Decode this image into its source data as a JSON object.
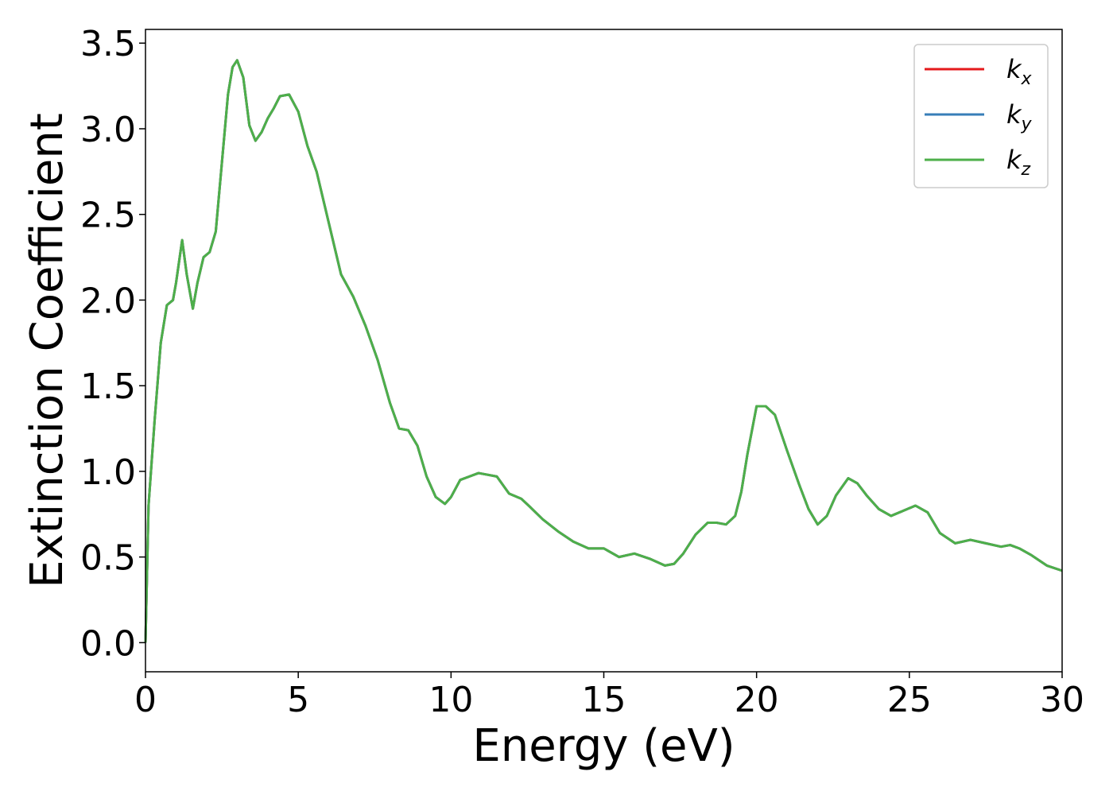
{
  "chart_data": {
    "type": "line",
    "title": "",
    "xlabel": "Energy (eV)",
    "ylabel": "Extinction Coefficient",
    "xlim": [
      0,
      30
    ],
    "ylim": [
      -0.17,
      3.58
    ],
    "xticks": [
      0,
      5,
      10,
      15,
      20,
      25,
      30
    ],
    "xtick_labels": [
      "0",
      "5",
      "10",
      "15",
      "20",
      "25",
      "30"
    ],
    "yticks": [
      0.0,
      0.5,
      1.0,
      1.5,
      2.0,
      2.5,
      3.0,
      3.5
    ],
    "ytick_labels": [
      "0.0",
      "0.5",
      "1.0",
      "1.5",
      "2.0",
      "2.5",
      "3.0",
      "3.5"
    ],
    "grid": false,
    "legend_position": "top-right",
    "x": [
      0.0,
      0.1,
      0.3,
      0.5,
      0.7,
      0.9,
      1.0,
      1.2,
      1.35,
      1.55,
      1.7,
      1.9,
      2.1,
      2.3,
      2.5,
      2.7,
      2.85,
      3.0,
      3.2,
      3.4,
      3.6,
      3.8,
      4.0,
      4.2,
      4.4,
      4.7,
      5.0,
      5.3,
      5.6,
      6.0,
      6.4,
      6.8,
      7.2,
      7.6,
      8.0,
      8.3,
      8.6,
      8.9,
      9.2,
      9.5,
      9.8,
      10.0,
      10.3,
      10.6,
      10.9,
      11.2,
      11.5,
      11.9,
      12.3,
      12.6,
      13.0,
      13.5,
      14.0,
      14.5,
      15.0,
      15.5,
      16.0,
      16.5,
      17.0,
      17.3,
      17.6,
      18.0,
      18.4,
      18.7,
      19.0,
      19.3,
      19.5,
      19.7,
      20.0,
      20.3,
      20.6,
      21.0,
      21.4,
      21.7,
      22.0,
      22.3,
      22.6,
      23.0,
      23.3,
      23.6,
      24.0,
      24.4,
      24.8,
      25.2,
      25.6,
      26.0,
      26.5,
      27.0,
      27.5,
      28.0,
      28.3,
      28.6,
      29.0,
      29.5,
      30.0
    ],
    "series": [
      {
        "name": "k_x",
        "color": "#e41a1c",
        "values": [
          0.0,
          0.8,
          1.3,
          1.75,
          1.97,
          2.0,
          2.1,
          2.35,
          2.15,
          1.95,
          2.1,
          2.25,
          2.28,
          2.4,
          2.8,
          3.2,
          3.36,
          3.4,
          3.3,
          3.02,
          2.93,
          2.98,
          3.06,
          3.12,
          3.19,
          3.2,
          3.1,
          2.9,
          2.75,
          2.45,
          2.15,
          2.02,
          1.85,
          1.65,
          1.4,
          1.25,
          1.24,
          1.15,
          0.97,
          0.85,
          0.81,
          0.85,
          0.95,
          0.97,
          0.99,
          0.98,
          0.97,
          0.87,
          0.84,
          0.79,
          0.72,
          0.65,
          0.59,
          0.55,
          0.55,
          0.5,
          0.52,
          0.49,
          0.45,
          0.46,
          0.52,
          0.63,
          0.7,
          0.7,
          0.69,
          0.74,
          0.88,
          1.1,
          1.38,
          1.38,
          1.33,
          1.12,
          0.92,
          0.78,
          0.69,
          0.74,
          0.86,
          0.96,
          0.93,
          0.86,
          0.78,
          0.74,
          0.77,
          0.8,
          0.76,
          0.64,
          0.58,
          0.6,
          0.58,
          0.56,
          0.57,
          0.55,
          0.51,
          0.45,
          0.42
        ]
      },
      {
        "name": "k_y",
        "color": "#377eb8",
        "values": [
          0.0,
          0.8,
          1.3,
          1.75,
          1.97,
          2.0,
          2.1,
          2.35,
          2.15,
          1.95,
          2.1,
          2.25,
          2.28,
          2.4,
          2.8,
          3.2,
          3.36,
          3.4,
          3.3,
          3.02,
          2.93,
          2.98,
          3.06,
          3.12,
          3.19,
          3.2,
          3.1,
          2.9,
          2.75,
          2.45,
          2.15,
          2.02,
          1.85,
          1.65,
          1.4,
          1.25,
          1.24,
          1.15,
          0.97,
          0.85,
          0.81,
          0.85,
          0.95,
          0.97,
          0.99,
          0.98,
          0.97,
          0.87,
          0.84,
          0.79,
          0.72,
          0.65,
          0.59,
          0.55,
          0.55,
          0.5,
          0.52,
          0.49,
          0.45,
          0.46,
          0.52,
          0.63,
          0.7,
          0.7,
          0.69,
          0.74,
          0.88,
          1.1,
          1.38,
          1.38,
          1.33,
          1.12,
          0.92,
          0.78,
          0.69,
          0.74,
          0.86,
          0.96,
          0.93,
          0.86,
          0.78,
          0.74,
          0.77,
          0.8,
          0.76,
          0.64,
          0.58,
          0.6,
          0.58,
          0.56,
          0.57,
          0.55,
          0.51,
          0.45,
          0.42
        ]
      },
      {
        "name": "k_z",
        "color": "#4daf4a",
        "values": [
          0.0,
          0.8,
          1.3,
          1.75,
          1.97,
          2.0,
          2.1,
          2.35,
          2.15,
          1.95,
          2.1,
          2.25,
          2.28,
          2.4,
          2.8,
          3.2,
          3.36,
          3.4,
          3.3,
          3.02,
          2.93,
          2.98,
          3.06,
          3.12,
          3.19,
          3.2,
          3.1,
          2.9,
          2.75,
          2.45,
          2.15,
          2.02,
          1.85,
          1.65,
          1.4,
          1.25,
          1.24,
          1.15,
          0.97,
          0.85,
          0.81,
          0.85,
          0.95,
          0.97,
          0.99,
          0.98,
          0.97,
          0.87,
          0.84,
          0.79,
          0.72,
          0.65,
          0.59,
          0.55,
          0.55,
          0.5,
          0.52,
          0.49,
          0.45,
          0.46,
          0.52,
          0.63,
          0.7,
          0.7,
          0.69,
          0.74,
          0.88,
          1.1,
          1.38,
          1.38,
          1.33,
          1.12,
          0.92,
          0.78,
          0.69,
          0.74,
          0.86,
          0.96,
          0.93,
          0.86,
          0.78,
          0.74,
          0.77,
          0.8,
          0.76,
          0.64,
          0.58,
          0.6,
          0.58,
          0.56,
          0.57,
          0.55,
          0.51,
          0.45,
          0.42
        ]
      }
    ],
    "legend": [
      {
        "base": "k",
        "sub": "x",
        "color": "#e41a1c"
      },
      {
        "base": "k",
        "sub": "y",
        "color": "#377eb8"
      },
      {
        "base": "k",
        "sub": "z",
        "color": "#4daf4a"
      }
    ]
  }
}
